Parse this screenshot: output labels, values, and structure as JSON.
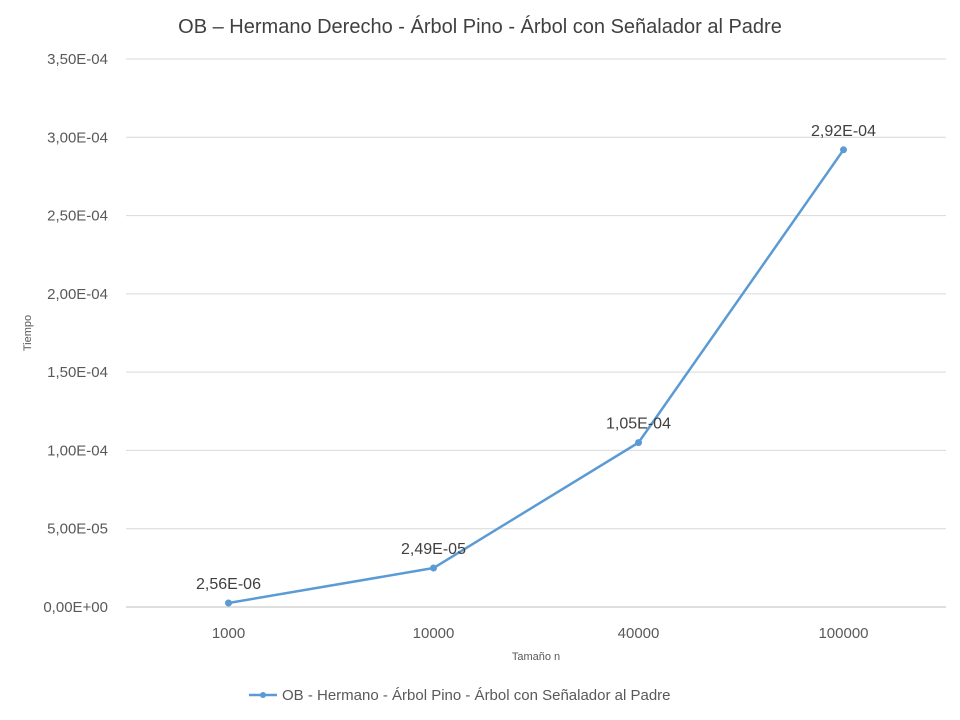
{
  "chart_data": {
    "type": "line",
    "title": "OB – Hermano Derecho - Árbol Pino - Árbol con Señalador al Padre",
    "xlabel": "Tamaño n",
    "ylabel": "Tiempo",
    "categories": [
      "1000",
      "10000",
      "40000",
      "100000"
    ],
    "series": [
      {
        "name": "OB - Hermano - Árbol Pino - Árbol con Señalador al Padre",
        "values": [
          2.56e-06,
          2.49e-05,
          0.000105,
          0.000292
        ],
        "labels": [
          "2,56E-06",
          "2,49E-05",
          "1,05E-04",
          "2,92E-04"
        ],
        "color": "#5b9bd5"
      }
    ],
    "ylim": [
      0,
      0.00035
    ],
    "yticks": [
      0,
      5e-05,
      0.0001,
      0.00015,
      0.0002,
      0.00025,
      0.0003,
      0.00035
    ],
    "ytick_labels": [
      "0,00E+00",
      "5,00E-05",
      "1,00E-04",
      "1,50E-04",
      "2,00E-04",
      "2,50E-04",
      "3,00E-04",
      "3,50E-04"
    ],
    "grid": true,
    "gridline_color": "#d9d9d9",
    "legend_position": "bottom"
  }
}
